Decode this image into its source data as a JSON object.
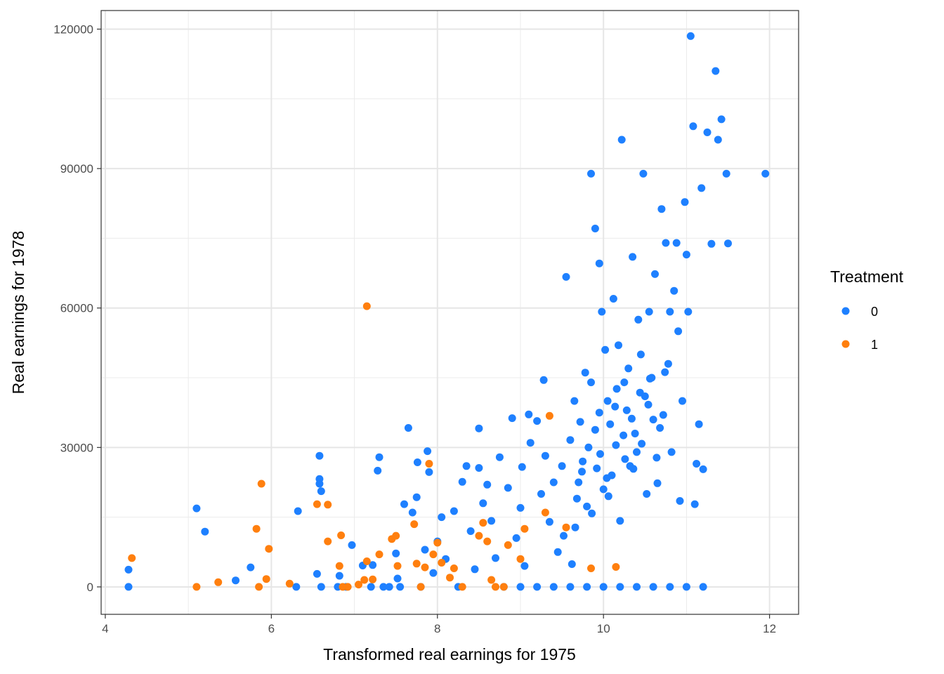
{
  "chart_data": {
    "type": "scatter",
    "title": "",
    "xlabel": "Transformed real earnings for 1975",
    "ylabel": "Real earnings for 1978",
    "xlim": [
      3.95,
      12.35
    ],
    "ylim": [
      -5900,
      124000
    ],
    "x_ticks": [
      4,
      6,
      8,
      10,
      12
    ],
    "y_ticks": [
      0,
      30000,
      60000,
      90000,
      120000
    ],
    "x_tick_labels": [
      "4",
      "6",
      "8",
      "10",
      "12"
    ],
    "y_tick_labels": [
      "0",
      "30000",
      "60000",
      "90000",
      "120000"
    ],
    "grid": true,
    "legend": {
      "title": "Treatment",
      "placement": "right"
    },
    "colors": {
      "0": "#1e80ff",
      "1": "#ff7f0e"
    },
    "series": [
      {
        "name": "0",
        "color": "#1e80ff",
        "points": [
          [
            4.28,
            0
          ],
          [
            4.28,
            3700
          ],
          [
            5.1,
            16900
          ],
          [
            5.2,
            11900
          ],
          [
            5.57,
            1400
          ],
          [
            5.75,
            4200
          ],
          [
            6.3,
            0
          ],
          [
            6.32,
            16300
          ],
          [
            6.55,
            2800
          ],
          [
            6.58,
            28200
          ],
          [
            6.58,
            23200
          ],
          [
            6.58,
            22200
          ],
          [
            6.6,
            20600
          ],
          [
            6.6,
            0
          ],
          [
            6.8,
            0
          ],
          [
            6.82,
            2400
          ],
          [
            6.9,
            0
          ],
          [
            6.97,
            9000
          ],
          [
            7.1,
            4600
          ],
          [
            7.2,
            0
          ],
          [
            7.22,
            4700
          ],
          [
            7.28,
            25000
          ],
          [
            7.3,
            27900
          ],
          [
            7.35,
            0
          ],
          [
            7.42,
            0
          ],
          [
            7.5,
            7200
          ],
          [
            7.52,
            1800
          ],
          [
            7.55,
            0
          ],
          [
            7.6,
            17800
          ],
          [
            7.65,
            34200
          ],
          [
            7.7,
            16000
          ],
          [
            7.75,
            19300
          ],
          [
            7.76,
            26800
          ],
          [
            7.8,
            0
          ],
          [
            7.85,
            8000
          ],
          [
            7.88,
            29200
          ],
          [
            7.9,
            24700
          ],
          [
            7.95,
            3000
          ],
          [
            8.0,
            9800
          ],
          [
            8.05,
            15000
          ],
          [
            8.1,
            6000
          ],
          [
            8.2,
            16300
          ],
          [
            8.25,
            0
          ],
          [
            8.3,
            22600
          ],
          [
            8.35,
            26000
          ],
          [
            8.4,
            12000
          ],
          [
            8.45,
            3800
          ],
          [
            8.5,
            25600
          ],
          [
            8.5,
            34100
          ],
          [
            8.55,
            18000
          ],
          [
            8.6,
            22000
          ],
          [
            8.65,
            14200
          ],
          [
            8.7,
            6200
          ],
          [
            8.75,
            27900
          ],
          [
            8.8,
            0
          ],
          [
            8.85,
            21300
          ],
          [
            8.9,
            36300
          ],
          [
            8.95,
            10500
          ],
          [
            9.0,
            17000
          ],
          [
            9.02,
            25800
          ],
          [
            9.05,
            4500
          ],
          [
            9.1,
            37100
          ],
          [
            9.12,
            31000
          ],
          [
            9.2,
            35700
          ],
          [
            9.25,
            20000
          ],
          [
            9.28,
            44500
          ],
          [
            9.3,
            28200
          ],
          [
            9.35,
            14000
          ],
          [
            9.4,
            22500
          ],
          [
            9.45,
            7500
          ],
          [
            9.5,
            26000
          ],
          [
            9.52,
            11000
          ],
          [
            9.55,
            66700
          ],
          [
            9.6,
            31600
          ],
          [
            9.62,
            4900
          ],
          [
            9.65,
            40000
          ],
          [
            9.68,
            19000
          ],
          [
            9.7,
            22500
          ],
          [
            9.72,
            35500
          ],
          [
            9.75,
            27000
          ],
          [
            9.78,
            46100
          ],
          [
            9.8,
            17300
          ],
          [
            9.82,
            30000
          ],
          [
            9.85,
            88900
          ],
          [
            9.85,
            44000
          ],
          [
            9.9,
            77100
          ],
          [
            9.92,
            25500
          ],
          [
            9.95,
            69600
          ],
          [
            9.95,
            37500
          ],
          [
            9.98,
            59200
          ],
          [
            10.0,
            21000
          ],
          [
            10.02,
            51000
          ],
          [
            10.05,
            40000
          ],
          [
            10.08,
            35000
          ],
          [
            10.1,
            24000
          ],
          [
            10.12,
            62000
          ],
          [
            10.15,
            30500
          ],
          [
            10.18,
            52000
          ],
          [
            10.2,
            14200
          ],
          [
            10.22,
            96200
          ],
          [
            10.25,
            44000
          ],
          [
            10.28,
            38000
          ],
          [
            10.3,
            47000
          ],
          [
            10.32,
            26000
          ],
          [
            10.35,
            71000
          ],
          [
            10.38,
            33000
          ],
          [
            10.4,
            29000
          ],
          [
            10.42,
            57500
          ],
          [
            10.45,
            50000
          ],
          [
            10.48,
            88900
          ],
          [
            10.5,
            41000
          ],
          [
            10.52,
            20000
          ],
          [
            10.55,
            59200
          ],
          [
            10.58,
            45000
          ],
          [
            10.6,
            36000
          ],
          [
            10.62,
            67300
          ],
          [
            10.65,
            22300
          ],
          [
            10.7,
            81300
          ],
          [
            10.72,
            37000
          ],
          [
            10.75,
            74000
          ],
          [
            10.78,
            48000
          ],
          [
            10.8,
            59200
          ],
          [
            10.82,
            29000
          ],
          [
            10.85,
            63700
          ],
          [
            10.88,
            74000
          ],
          [
            10.9,
            55000
          ],
          [
            10.92,
            18500
          ],
          [
            10.95,
            40000
          ],
          [
            10.98,
            82800
          ],
          [
            11.0,
            71500
          ],
          [
            11.02,
            59200
          ],
          [
            11.05,
            118500
          ],
          [
            11.08,
            99100
          ],
          [
            11.1,
            17800
          ],
          [
            11.12,
            26500
          ],
          [
            11.15,
            35000
          ],
          [
            11.18,
            85800
          ],
          [
            11.2,
            25300
          ],
          [
            11.25,
            97800
          ],
          [
            11.3,
            73800
          ],
          [
            11.35,
            111000
          ],
          [
            11.38,
            96200
          ],
          [
            11.42,
            100600
          ],
          [
            11.48,
            88900
          ],
          [
            11.5,
            73900
          ],
          [
            11.95,
            88900
          ],
          [
            9.0,
            0
          ],
          [
            9.2,
            0
          ],
          [
            9.4,
            0
          ],
          [
            9.6,
            0
          ],
          [
            9.8,
            0
          ],
          [
            10.0,
            0
          ],
          [
            10.2,
            0
          ],
          [
            10.4,
            0
          ],
          [
            10.6,
            0
          ],
          [
            10.8,
            0
          ],
          [
            11.0,
            0
          ],
          [
            11.2,
            0
          ],
          [
            9.66,
            12800
          ],
          [
            9.74,
            24800
          ],
          [
            9.9,
            33800
          ],
          [
            10.06,
            19500
          ],
          [
            10.16,
            42600
          ],
          [
            10.26,
            27500
          ],
          [
            10.34,
            36200
          ],
          [
            10.46,
            30800
          ],
          [
            10.56,
            44800
          ],
          [
            10.68,
            34200
          ],
          [
            9.86,
            15800
          ],
          [
            9.96,
            28600
          ],
          [
            10.04,
            23400
          ],
          [
            10.14,
            38800
          ],
          [
            10.24,
            32600
          ],
          [
            10.36,
            25400
          ],
          [
            10.44,
            41800
          ],
          [
            10.54,
            39200
          ],
          [
            10.64,
            27800
          ],
          [
            10.74,
            46200
          ]
        ]
      },
      {
        "name": "1",
        "color": "#ff7f0e",
        "points": [
          [
            4.32,
            6200
          ],
          [
            5.1,
            0
          ],
          [
            5.36,
            1000
          ],
          [
            5.82,
            12500
          ],
          [
            5.85,
            0
          ],
          [
            5.88,
            22200
          ],
          [
            5.94,
            1700
          ],
          [
            5.97,
            8200
          ],
          [
            6.22,
            700
          ],
          [
            6.55,
            17800
          ],
          [
            6.68,
            17700
          ],
          [
            6.68,
            9800
          ],
          [
            6.82,
            4500
          ],
          [
            6.84,
            11100
          ],
          [
            6.86,
            0
          ],
          [
            6.92,
            0
          ],
          [
            7.05,
            500
          ],
          [
            7.12,
            1500
          ],
          [
            7.15,
            5500
          ],
          [
            7.15,
            60400
          ],
          [
            7.22,
            1600
          ],
          [
            7.3,
            7000
          ],
          [
            7.45,
            10300
          ],
          [
            7.5,
            11000
          ],
          [
            7.52,
            4500
          ],
          [
            7.72,
            13500
          ],
          [
            7.75,
            5000
          ],
          [
            7.8,
            0
          ],
          [
            7.85,
            4200
          ],
          [
            7.9,
            26500
          ],
          [
            7.95,
            7000
          ],
          [
            8.0,
            9500
          ],
          [
            8.05,
            5200
          ],
          [
            8.15,
            2000
          ],
          [
            8.2,
            4000
          ],
          [
            8.3,
            0
          ],
          [
            8.5,
            11000
          ],
          [
            8.55,
            13800
          ],
          [
            8.6,
            9800
          ],
          [
            8.65,
            1500
          ],
          [
            8.7,
            0
          ],
          [
            8.8,
            0
          ],
          [
            8.85,
            9000
          ],
          [
            9.0,
            6000
          ],
          [
            9.05,
            12500
          ],
          [
            9.3,
            16000
          ],
          [
            9.35,
            36800
          ],
          [
            9.55,
            12800
          ],
          [
            9.85,
            4000
          ],
          [
            10.15,
            4300
          ]
        ]
      }
    ]
  }
}
